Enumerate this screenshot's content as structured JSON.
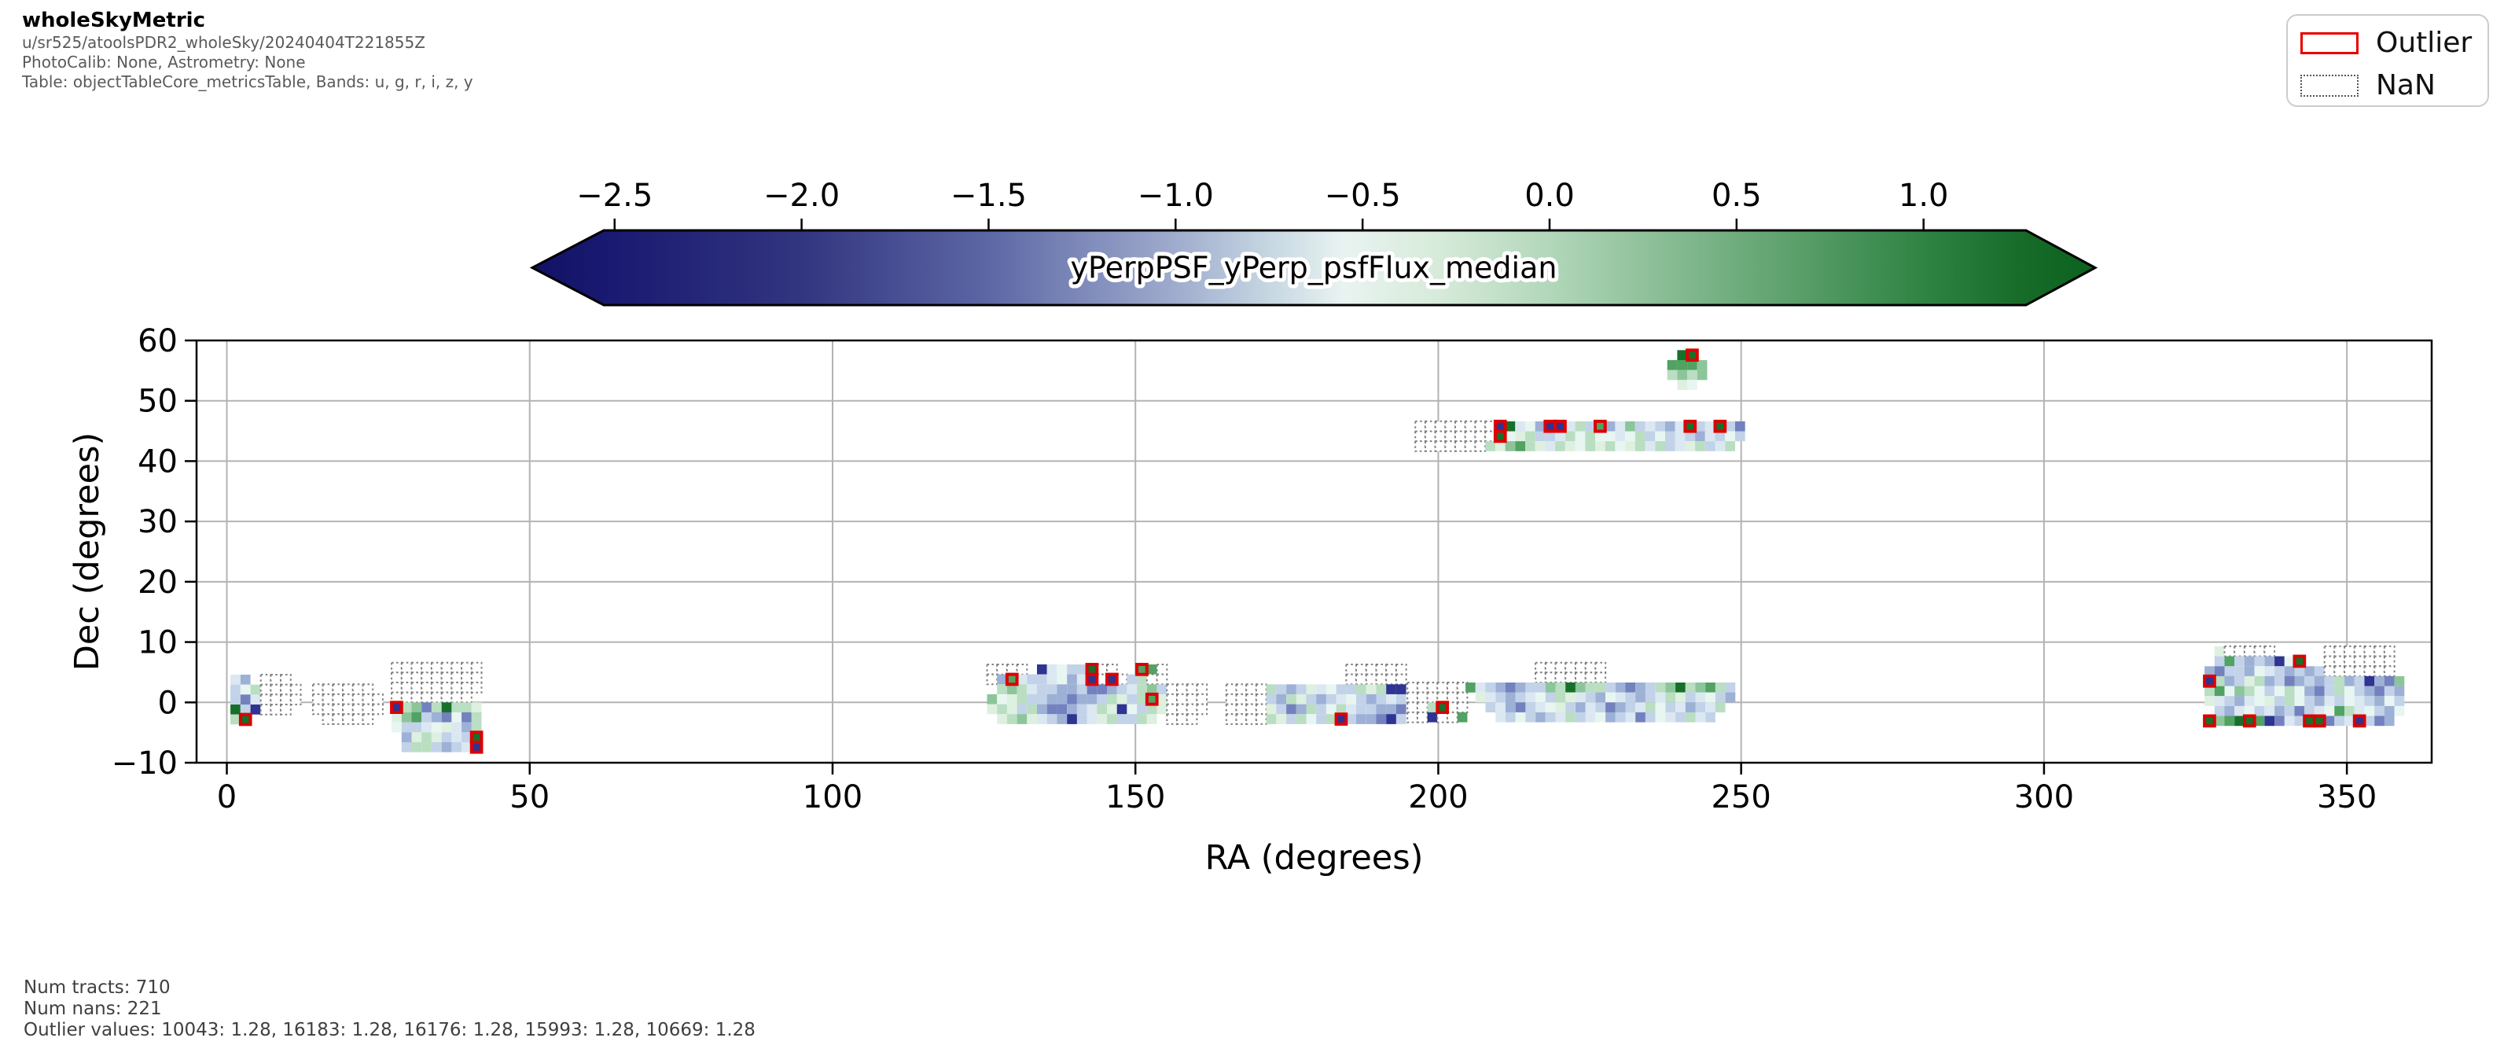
{
  "header": {
    "title": "wholeSkyMetric",
    "run": "u/sr525/atoolsPDR2_wholeSky/20240404T221855Z",
    "calib": "PhotoCalib: None, Astrometry: None",
    "table": "Table: objectTableCore_metricsTable, Bands: u, g, r, i, z, y"
  },
  "legend": {
    "outlier_label": "Outlier",
    "nan_label": "NaN",
    "outlier_color": "#e60000",
    "nan_border": "#555555"
  },
  "footer": {
    "tracts": "Num tracts: 710",
    "nans": "Num nans: 221",
    "outliers": "Outlier values: 10043: 1.28, 16183: 1.28, 16176: 1.28, 15993: 1.28, 10669: 1.28"
  },
  "chart_data": {
    "type": "heatmap",
    "title": "wholeSkyMetric",
    "xlabel": "RA (degrees)",
    "ylabel": "Dec (degrees)",
    "xlim": [
      -5,
      364
    ],
    "ylim": [
      -10,
      60
    ],
    "grid": true,
    "xticks": [
      0,
      50,
      100,
      150,
      200,
      250,
      300,
      350
    ],
    "xtick_labels": [
      "0",
      "50",
      "100",
      "150",
      "200",
      "250",
      "300",
      "350"
    ],
    "yticks": [
      -10,
      0,
      10,
      20,
      30,
      40,
      50,
      60
    ],
    "ytick_labels": [
      "−10",
      "0",
      "10",
      "20",
      "30",
      "40",
      "50",
      "60"
    ],
    "colorbar": {
      "label": "yPerpPSF_yPerp_psfFlux_median",
      "ticks": [
        -2.5,
        -2.0,
        -1.5,
        -1.0,
        -0.5,
        0.0,
        0.5,
        1.0
      ],
      "tick_labels": [
        "−2.5",
        "−2.0",
        "−1.5",
        "−1.0",
        "−0.5",
        "0.0",
        "0.5",
        "1.0"
      ],
      "arrow_range": [
        -2.72,
        1.45
      ],
      "gradient": [
        [
          -2.72,
          "#111166"
        ],
        [
          -2.5,
          "#1a1a72"
        ],
        [
          -2.0,
          "#32357f"
        ],
        [
          -1.5,
          "#5d67a5"
        ],
        [
          -1.0,
          "#9faccd"
        ],
        [
          -0.75,
          "#c6d7e2"
        ],
        [
          -0.55,
          "#e9f3f1"
        ],
        [
          -0.3,
          "#d7ebda"
        ],
        [
          0.0,
          "#b2d7ba"
        ],
        [
          0.5,
          "#6fac7d"
        ],
        [
          1.0,
          "#2f8343"
        ],
        [
          1.27,
          "#176b29"
        ],
        [
          1.45,
          "#0d6220"
        ]
      ]
    },
    "outlier_edge_color": "#dd0000",
    "nan_edge_color": "#808080",
    "palette": {
      "0": "#e8f6f2",
      "a": "#dbe8f2",
      "b": "#c2d2e8",
      "c": "#9db0d6",
      "d": "#7381bf",
      "e": "#2f3391",
      "E": "#1c1c74",
      "f": "#def0e0",
      "g": "#b9dec1",
      "h": "#8cc59a",
      "i": "#51a263",
      "j": "#17702a"
    },
    "cell_deg": 1.65,
    "clusters": [
      {
        "ra0": 0.6,
        "dec0": 4.6,
        "rows": [
          [
            "a",
            "c",
            ""
          ],
          [
            "b",
            "0",
            "g"
          ],
          [
            "b",
            "d",
            "a"
          ],
          [
            "j",
            "b",
            "e"
          ],
          [
            "g",
            "!j",
            ""
          ]
        ]
      },
      {
        "ra0": 5.6,
        "dec0": 4.6,
        "rows": [
          [
            "n",
            "n",
            "n",
            ""
          ],
          [
            "n",
            "n",
            "n",
            "n"
          ],
          [
            "n",
            "n",
            "n",
            "n"
          ],
          [
            "n",
            "n",
            "n",
            ""
          ]
        ]
      },
      {
        "ra0": 14.2,
        "dec0": 3.0,
        "rows": [
          [
            "n",
            "n",
            "n",
            "n",
            "n",
            "n",
            ""
          ],
          [
            "n",
            "n",
            "n",
            "n",
            "n",
            "n",
            "n"
          ],
          [
            "n",
            "n",
            "n",
            "n",
            "n",
            "n",
            "n"
          ],
          [
            "",
            "n",
            "n",
            "n",
            "n",
            "n",
            ""
          ]
        ]
      },
      {
        "ra0": 27.2,
        "dec0": 6.6,
        "rows": [
          [
            "n",
            "n",
            "n",
            "n",
            "n",
            "n",
            "n",
            "n",
            "n"
          ],
          [
            "n",
            "n",
            "n",
            "n",
            "n",
            "n",
            "n",
            "n",
            "n"
          ],
          [
            "n",
            "n",
            "n",
            "n",
            "n",
            "n",
            "n",
            "n",
            "n"
          ],
          [
            "n",
            "n",
            "n",
            "n",
            "n",
            "n",
            "n",
            "n",
            ""
          ],
          [
            "!e",
            "g",
            "h",
            "d",
            "g",
            "j",
            "g",
            "g",
            "f"
          ],
          [
            "f",
            "h",
            "i",
            "b",
            "c",
            "d",
            "0",
            "d",
            "g"
          ],
          [
            "0",
            "b",
            "b",
            "a",
            "0",
            "f",
            "a",
            "c",
            "g"
          ],
          [
            "",
            "c",
            "f",
            "g",
            "f",
            "b",
            "a",
            "b",
            "!j"
          ],
          [
            "",
            "b",
            "g",
            "g",
            "b",
            "c",
            "b",
            "a",
            "!e"
          ]
        ]
      },
      {
        "ra0": 125.5,
        "dec0": 6.3,
        "rows": [
          [
            "n",
            "n",
            "n",
            "n",
            "",
            "e",
            "a",
            "0",
            "b",
            "b",
            "!j",
            "n",
            "n",
            "",
            "",
            "!i",
            "i",
            "n",
            "",
            "",
            "",
            ""
          ],
          [
            "n",
            "c",
            "!i",
            "a",
            "b",
            "b",
            "a",
            "0",
            "c",
            "a",
            "!e",
            "n",
            "!e",
            "n",
            "b",
            "g",
            "n",
            "n",
            "",
            "",
            "",
            ""
          ],
          [
            "",
            "g",
            "h",
            "g",
            "a",
            "b",
            "b",
            "c",
            "c",
            "b",
            "d",
            "d",
            "c",
            "b",
            "a",
            "g",
            "h",
            "b",
            "n",
            "n",
            "n",
            "n"
          ],
          [
            "h",
            "0",
            "f",
            "g",
            "b",
            "b",
            "c",
            "c",
            "d",
            "c",
            "c",
            "b",
            "g",
            "f",
            "b",
            "g",
            "!i",
            "f",
            "n",
            "n",
            "n",
            "n"
          ],
          [
            "f",
            "g",
            "f",
            "b",
            "g",
            "c",
            "d",
            "d",
            "c",
            "b",
            "a",
            "g",
            "f",
            "e",
            "0",
            "b",
            "g",
            "f",
            "n",
            "n",
            "n",
            "n"
          ],
          [
            "",
            "f",
            "g",
            "h",
            "f",
            "a",
            "b",
            "c",
            "e",
            "b",
            "a",
            "f",
            "g",
            "b",
            "b",
            "g",
            "f",
            "",
            "n",
            "n",
            "n",
            ""
          ]
        ]
      },
      {
        "ra0": 165.0,
        "dec0": 6.3,
        "rows": [
          [
            "",
            "",
            "",
            "",
            "",
            "",
            "",
            "",
            "",
            "",
            "",
            "",
            "n",
            "n",
            "n",
            "n",
            "n",
            "n"
          ],
          [
            "",
            "",
            "",
            "",
            "",
            "",
            "",
            "",
            "",
            "",
            "",
            "",
            "n",
            "n",
            "n",
            "n",
            "n",
            "n"
          ],
          [
            "n",
            "n",
            "n",
            "n",
            "g",
            "b",
            "c",
            "b",
            "f",
            "a",
            "0",
            "b",
            "b",
            "g",
            "f",
            "g",
            "e",
            "e"
          ],
          [
            "n",
            "n",
            "n",
            "n",
            "b",
            "c",
            "g",
            "f",
            "b",
            "c",
            "b",
            "a",
            "0",
            "b",
            "c",
            "b",
            "a",
            "b"
          ],
          [
            "n",
            "n",
            "n",
            "n",
            "f",
            "b",
            "d",
            "c",
            "g",
            "b",
            "0",
            "g",
            "a",
            "b",
            "b",
            "c",
            "c",
            "d"
          ],
          [
            "n",
            "n",
            "n",
            "n",
            "g",
            "f",
            "b",
            "g",
            "0",
            "b",
            "g",
            "!e",
            "b",
            "c",
            "c",
            "d",
            "e",
            "b"
          ]
        ]
      },
      {
        "ra0": 194.9,
        "dec0": 3.3,
        "rows": [
          [
            "n",
            "n",
            "n",
            "n",
            "n",
            "n"
          ],
          [
            "n",
            "n",
            "n",
            "n",
            "n",
            "n"
          ],
          [
            "n",
            "n",
            "g",
            "!j",
            "n",
            "n"
          ],
          [
            "n",
            "n",
            "e",
            "n",
            "n",
            "i"
          ]
        ]
      },
      {
        "ra0": 204.5,
        "dec0": 6.6,
        "rows": [
          [
            "",
            "",
            "",
            "",
            "",
            "",
            "",
            "n",
            "n",
            "n",
            "n",
            "n",
            "n",
            "n",
            "",
            "",
            "",
            "",
            "",
            "",
            "",
            "",
            "",
            "",
            "",
            "",
            ""
          ],
          [
            "",
            "",
            "",
            "",
            "",
            "",
            "",
            "n",
            "n",
            "n",
            "n",
            "n",
            "n",
            "n",
            "",
            "",
            "",
            "",
            "",
            "",
            "",
            "",
            "",
            "",
            "",
            "",
            ""
          ],
          [
            "i",
            "a",
            "b",
            "c",
            "d",
            "c",
            "b",
            "b",
            "h",
            "g",
            "j",
            "h",
            "g",
            "g",
            "b",
            "c",
            "d",
            "c",
            "b",
            "g",
            "h",
            "j",
            "g",
            "h",
            "i",
            "g",
            "b"
          ],
          [
            "",
            "f",
            "a",
            "b",
            "c",
            "b",
            "a",
            "0",
            "b",
            "g",
            "f",
            "a",
            "b",
            "c",
            "0",
            "a",
            "b",
            "c",
            "b",
            "a",
            "g",
            "f",
            "b",
            "a",
            "0",
            "b",
            "c"
          ],
          [
            "",
            "",
            "b",
            "a",
            "c",
            "d",
            "b",
            "a",
            "0",
            "f",
            "b",
            "c",
            "a",
            "b",
            "d",
            "c",
            "b",
            "a",
            "g",
            "0",
            "b",
            "a",
            "c",
            "b",
            "a",
            "g",
            ""
          ],
          [
            "",
            "",
            "",
            "a",
            "b",
            "0",
            "b",
            "c",
            "b",
            "a",
            "g",
            "b",
            "a",
            "0",
            "c",
            "b",
            "a",
            "d",
            "b",
            "0",
            "a",
            "b",
            "g",
            "a",
            "b",
            "",
            ""
          ]
        ]
      },
      {
        "ra0": 196.2,
        "dec0": 46.6,
        "rows": [
          [
            "n",
            "n",
            "n",
            "n",
            "n",
            "n",
            "n",
            "n",
            "!e",
            "j",
            "a",
            "0",
            "c",
            "!e",
            "!e",
            "a",
            "g",
            "b",
            "!i",
            "c",
            "a",
            "h",
            "b",
            "a",
            "b",
            "c",
            "a",
            "!j",
            "b",
            "a",
            "!j",
            "b",
            "d"
          ],
          [
            "n",
            "n",
            "n",
            "n",
            "n",
            "n",
            "n",
            "n",
            "!j",
            "0",
            "f",
            "g",
            "b",
            "b",
            "a",
            "g",
            "0",
            "g",
            "0",
            "0",
            "a",
            "0",
            "g",
            "b",
            "0",
            "b",
            "a",
            "b",
            "c",
            "a",
            "b",
            "0",
            "b"
          ],
          [
            "n",
            "n",
            "n",
            "n",
            "n",
            "n",
            "n",
            "g",
            "f",
            "h",
            "i",
            "g",
            "f",
            "a",
            "g",
            "f",
            "0",
            "g",
            "f",
            "g",
            "0",
            "f",
            "g",
            "a",
            "g",
            "b",
            "a",
            "f",
            "g",
            "b",
            "a",
            "g",
            ""
          ]
        ]
      },
      {
        "ra0": 237.8,
        "dec0": 58.4,
        "rows": [
          [
            "",
            "j",
            "!j",
            "",
            "",
            ""
          ],
          [
            "i",
            "i",
            "i",
            "h",
            "",
            ""
          ],
          [
            "g",
            "h",
            "g",
            "h",
            "",
            ""
          ],
          [
            "",
            "f",
            "0",
            "",
            "",
            ""
          ]
        ]
      },
      {
        "ra0": 326.5,
        "dec0": 9.3,
        "rows": [
          [
            "",
            "f",
            "n",
            "n",
            "n",
            "n",
            "n",
            "",
            "",
            "",
            "",
            "",
            "n",
            "n",
            "n",
            "n",
            "n",
            "n",
            "n",
            "",
            ""
          ],
          [
            "",
            "b",
            "i",
            "b",
            "c",
            "b",
            "c",
            "e",
            "0",
            "!j",
            "",
            "",
            "n",
            "n",
            "n",
            "n",
            "n",
            "n",
            "n",
            "",
            ""
          ],
          [
            "c",
            "d",
            "b",
            "b",
            "c",
            "0",
            "a",
            "b",
            "c",
            "b",
            "c",
            "b",
            "n",
            "n",
            "n",
            "n",
            "n",
            "n",
            "n",
            "",
            ""
          ],
          [
            "!e",
            "g",
            "c",
            "b",
            "f",
            "g",
            "c",
            "b",
            "d",
            "c",
            "b",
            "c",
            "b",
            "g",
            "c",
            "b",
            "e",
            "c",
            "d",
            "h",
            ""
          ],
          [
            "g",
            "i",
            "0",
            "h",
            "g",
            "0",
            "b",
            "0",
            "g",
            "0",
            "c",
            "d",
            "b",
            "g",
            "0",
            "b",
            "c",
            "d",
            "b",
            "c",
            ""
          ],
          [
            "f",
            "a",
            "b",
            "c",
            "a",
            "0",
            "f",
            "b",
            "g",
            "0",
            "b",
            "c",
            "a",
            "b",
            "0",
            "a",
            "b",
            "c",
            "0",
            "b",
            ""
          ],
          [
            "",
            "b",
            "c",
            "a",
            "0",
            "b",
            "a",
            "c",
            "b",
            "d",
            "b",
            "a",
            "0",
            "i",
            "g",
            "a",
            "0",
            "b",
            "c",
            "0",
            ""
          ],
          [
            "!j",
            "h",
            "i",
            "j",
            "!j",
            "i",
            "e",
            "d",
            "a",
            "b",
            "!j",
            "!j",
            "d",
            "b",
            "a",
            "!e",
            "b",
            "d",
            "c",
            "",
            ""
          ]
        ]
      }
    ]
  }
}
